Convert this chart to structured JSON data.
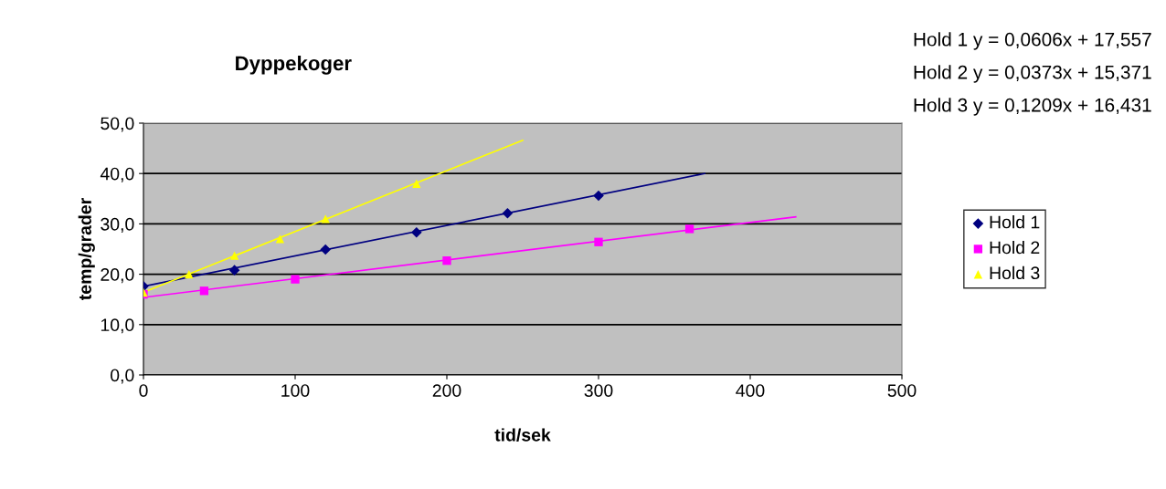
{
  "chart_data": {
    "type": "scatter",
    "title": "Dyppekoger",
    "xlabel": "tid/sek",
    "ylabel": "temp/grader",
    "xlim": [
      0,
      500
    ],
    "xticks": [
      0,
      100,
      200,
      300,
      400,
      500
    ],
    "ylim": [
      0,
      50
    ],
    "yticks": [
      {
        "value": 0,
        "label": "0,0"
      },
      {
        "value": 10,
        "label": "10,0"
      },
      {
        "value": 20,
        "label": "20,0"
      },
      {
        "value": 30,
        "label": "30,0"
      },
      {
        "value": 40,
        "label": "40,0"
      },
      {
        "value": 50,
        "label": "50,0"
      }
    ],
    "grid": "y",
    "legend": "right",
    "series": [
      {
        "name": "Hold 1",
        "marker": "diamond",
        "color": "#000080",
        "x": [
          0,
          60,
          120,
          180,
          240,
          300
        ],
        "values": [
          17.6,
          20.8,
          24.9,
          28.3,
          32.1,
          35.6
        ]
      },
      {
        "name": "Hold 2",
        "marker": "square",
        "color": "#ff00ff",
        "x": [
          0,
          40,
          100,
          200,
          300,
          360
        ],
        "values": [
          16.0,
          16.7,
          19.0,
          22.7,
          26.4,
          29.0
        ]
      },
      {
        "name": "Hold 3",
        "marker": "triangle",
        "color": "#ffff00",
        "x": [
          0,
          30,
          60,
          90,
          120,
          180
        ],
        "values": [
          16.4,
          20.0,
          23.7,
          27.0,
          31.0,
          38.0
        ]
      },
      {
        "type": "line",
        "color": "#000080",
        "x": [
          0,
          370
        ],
        "values": [
          17.6,
          40.0
        ]
      },
      {
        "type": "line",
        "color": "#ff00ff",
        "x": [
          0,
          430
        ],
        "values": [
          15.4,
          31.4
        ]
      },
      {
        "type": "line",
        "color": "#ffff00",
        "x": [
          0,
          250
        ],
        "values": [
          16.4,
          46.6
        ]
      }
    ],
    "annotations": [
      "Hold 1 y = 0,0606x + 17,557",
      "Hold 2 y = 0,0373x + 15,371",
      "Hold 3 y = 0,1209x + 16,431"
    ]
  }
}
